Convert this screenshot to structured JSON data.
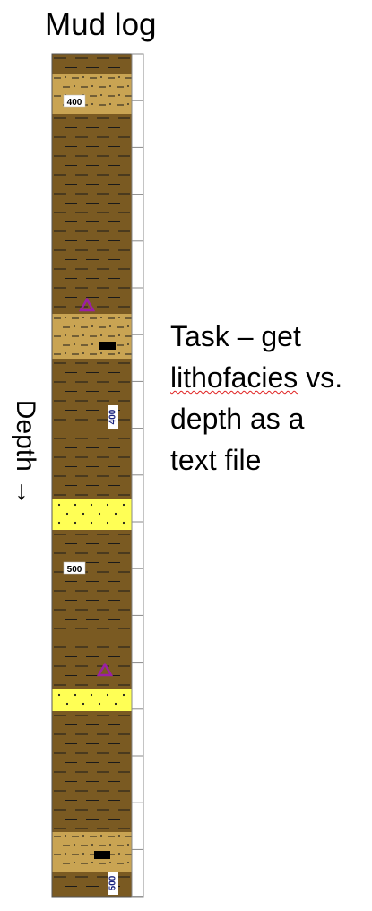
{
  "title": "Mud log",
  "depth_label": "Depth →",
  "task_lines": {
    "l1": "Task – get",
    "l2a": "lithofacies",
    "l2b": " vs.",
    "l3": "depth as a",
    "l4": "text file"
  },
  "log_colors": {
    "shale": "#7a5a22",
    "silty_sand": "#c9a453",
    "sand": "#ffff55",
    "pen": "#1a1a1a",
    "track_border": "#555555",
    "fossil": "#9b1fa5",
    "depth_text_blue": "#1a237e"
  },
  "intervals": [
    {
      "top": 0,
      "base": 22,
      "lith": "shale"
    },
    {
      "top": 22,
      "base": 67,
      "lith": "silty_sand"
    },
    {
      "top": 67,
      "base": 290,
      "lith": "shale"
    },
    {
      "top": 290,
      "base": 340,
      "lith": "silty_sand"
    },
    {
      "top": 340,
      "base": 496,
      "lith": "shale"
    },
    {
      "top": 496,
      "base": 531,
      "lith": "sand"
    },
    {
      "top": 531,
      "base": 708,
      "lith": "shale"
    },
    {
      "top": 708,
      "base": 733,
      "lith": "sand"
    },
    {
      "top": 733,
      "base": 868,
      "lith": "shale"
    },
    {
      "top": 868,
      "base": 913,
      "lith": "silty_sand"
    },
    {
      "top": 913,
      "base": 940,
      "lith": "shale"
    }
  ],
  "depth_labels": [
    {
      "text": "400",
      "style": "boxed",
      "pos": 53
    },
    {
      "text": "500",
      "style": "boxed",
      "pos": 574
    },
    {
      "text": "400",
      "style": "rotated",
      "pos": 405
    },
    {
      "text": "500",
      "style": "rotated",
      "pos": 925
    }
  ],
  "symbols": [
    {
      "type": "fossil",
      "pos": 280
    },
    {
      "type": "fossil",
      "pos": 687
    },
    {
      "type": "chip",
      "pos": 325
    },
    {
      "type": "chip",
      "pos": 893
    }
  ]
}
